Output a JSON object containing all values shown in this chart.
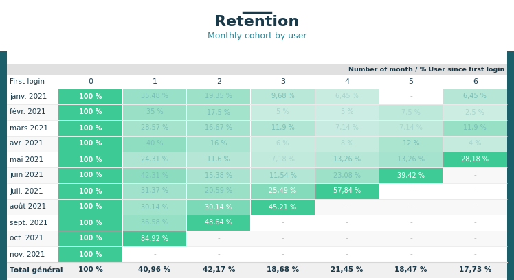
{
  "title": "Retention",
  "subtitle": "Monthly cohort by user",
  "header_note": "Number of month / % User since first login",
  "col_headers": [
    "0",
    "1",
    "2",
    "3",
    "4",
    "5",
    "6"
  ],
  "row_labels": [
    "First login",
    "janv. 2021",
    "févr. 2021",
    "mars 2021",
    "avr. 2021",
    "mai 2021",
    "juin 2021",
    "juil. 2021",
    "août 2021",
    "sept. 2021",
    "oct. 2021",
    "nov. 2021"
  ],
  "total_row_label": "Total général",
  "data": [
    [
      "100 %",
      "35,48 %",
      "19,35 %",
      "9,68 %",
      "6,45 %",
      "-",
      "6,45 %"
    ],
    [
      "100 %",
      "35 %",
      "17,5 %",
      "5 %",
      "5 %",
      "7,5 %",
      "2,5 %"
    ],
    [
      "100 %",
      "28,57 %",
      "16,67 %",
      "11,9 %",
      "7,14 %",
      "7,14 %",
      "11,9 %"
    ],
    [
      "100 %",
      "40 %",
      "16 %",
      "6 %",
      "8 %",
      "12 %",
      "4 %"
    ],
    [
      "100 %",
      "24,31 %",
      "11,6 %",
      "7,18 %",
      "13,26 %",
      "13,26 %",
      "28,18 %"
    ],
    [
      "100 %",
      "42,31 %",
      "15,38 %",
      "11,54 %",
      "23,08 %",
      "39,42 %",
      "-"
    ],
    [
      "100 %",
      "31,37 %",
      "20,59 %",
      "25,49 %",
      "57,84 %",
      "-",
      "-"
    ],
    [
      "100 %",
      "30,14 %",
      "30,14 %",
      "45,21 %",
      "-",
      "-",
      "-"
    ],
    [
      "100 %",
      "36,58 %",
      "48,64 %",
      "-",
      "-",
      "-",
      "-"
    ],
    [
      "100 %",
      "84,92 %",
      "-",
      "-",
      "-",
      "-",
      "-"
    ],
    [
      "100 %",
      "-",
      "-",
      "-",
      "-",
      "-",
      "-"
    ]
  ],
  "values": [
    [
      100,
      35.48,
      19.35,
      9.68,
      6.45,
      null,
      6.45
    ],
    [
      100,
      35,
      17.5,
      5,
      5,
      7.5,
      2.5
    ],
    [
      100,
      28.57,
      16.67,
      11.9,
      7.14,
      7.14,
      11.9
    ],
    [
      100,
      40,
      16,
      6,
      8,
      12,
      4
    ],
    [
      100,
      24.31,
      11.6,
      7.18,
      13.26,
      13.26,
      28.18
    ],
    [
      100,
      42.31,
      15.38,
      11.54,
      23.08,
      39.42,
      null
    ],
    [
      100,
      31.37,
      20.59,
      25.49,
      57.84,
      null,
      null
    ],
    [
      100,
      30.14,
      30.14,
      45.21,
      null,
      null,
      null
    ],
    [
      100,
      36.58,
      48.64,
      null,
      null,
      null,
      null
    ],
    [
      100,
      84.92,
      null,
      null,
      null,
      null,
      null
    ],
    [
      100,
      null,
      null,
      null,
      null,
      null,
      null
    ]
  ],
  "total_row": [
    "100 %",
    "40,96 %",
    "42,17 %",
    "18,68 %",
    "21,45 %",
    "18,47 %",
    "17,73 %"
  ],
  "total_values": [
    100,
    40.96,
    42.17,
    18.68,
    21.45,
    18.47,
    17.73
  ],
  "bg_color": "#ffffff",
  "title_color": "#1a3a4a",
  "subtitle_color": "#2d8a9a",
  "header_note_bg": "#e0e0e0",
  "header_note_text_color": "#1a3a4a",
  "side_bar_color": "#1a5f6a",
  "col0_green": "#3dca95",
  "cell_color_max": "#3dca95",
  "cell_color_min": "#daf0ea",
  "text_dark": "#1a3a4a",
  "text_mid": "#7abfb8",
  "text_light": "#a8d5ce",
  "null_text": "#bbbbbb",
  "total_row_bg": "#f0f0f0",
  "row_bg_even": "#ffffff",
  "row_bg_odd": "#f8f8f8"
}
